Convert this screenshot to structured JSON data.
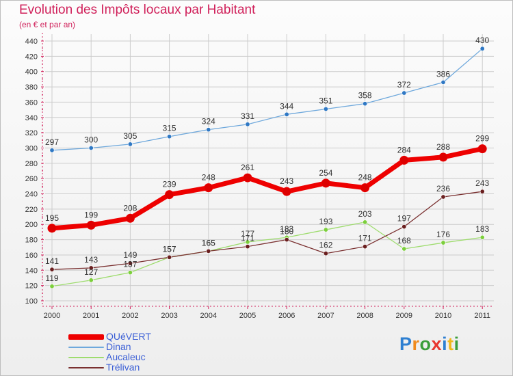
{
  "header": {
    "title": "Evolution des Impôts locaux par Habitant",
    "subtitle": "(en € et par an)"
  },
  "logo": {
    "text": "Proxiti",
    "letters": [
      "P",
      "r",
      "o",
      "x",
      "i",
      "t",
      "i"
    ]
  },
  "colors": {
    "title": "#d0205a",
    "axis": "#d0205a",
    "grid": "#cccccc",
    "legend_text": "#3b5fd6"
  },
  "chart_data": {
    "type": "line",
    "title": "Evolution des Impôts locaux par Habitant",
    "subtitle": "(en € et par an)",
    "xlabel": "",
    "ylabel": "",
    "ylim": [
      100,
      440
    ],
    "ytick_step": 20,
    "grid": true,
    "legend_position": "bottom-left",
    "categories": [
      "2000",
      "2001",
      "2002",
      "2003",
      "2004",
      "2005",
      "2006",
      "2007",
      "2008",
      "2009",
      "2010",
      "2011"
    ],
    "series": [
      {
        "name": "QUéVERT",
        "color": "#ee0000",
        "marker_color": "#dd0000",
        "width": 7,
        "values": [
          195,
          199,
          208,
          239,
          248,
          261,
          243,
          254,
          248,
          284,
          288,
          299
        ]
      },
      {
        "name": "Dinan",
        "color": "#6ea8dc",
        "marker_color": "#2f78c4",
        "width": 1.3,
        "values": [
          297,
          300,
          305,
          315,
          324,
          331,
          344,
          351,
          358,
          372,
          386,
          430
        ]
      },
      {
        "name": "Aucaleuc",
        "color": "#9edc6e",
        "marker_color": "#7ccf3c",
        "width": 1.3,
        "values": [
          119,
          127,
          137,
          157,
          165,
          177,
          183,
          193,
          203,
          168,
          176,
          183
        ]
      },
      {
        "name": "Trélivan",
        "color": "#7a3030",
        "marker_color": "#6a1f1f",
        "width": 1.3,
        "values": [
          141,
          143,
          149,
          157,
          165,
          171,
          180,
          162,
          171,
          197,
          236,
          243
        ]
      }
    ]
  }
}
